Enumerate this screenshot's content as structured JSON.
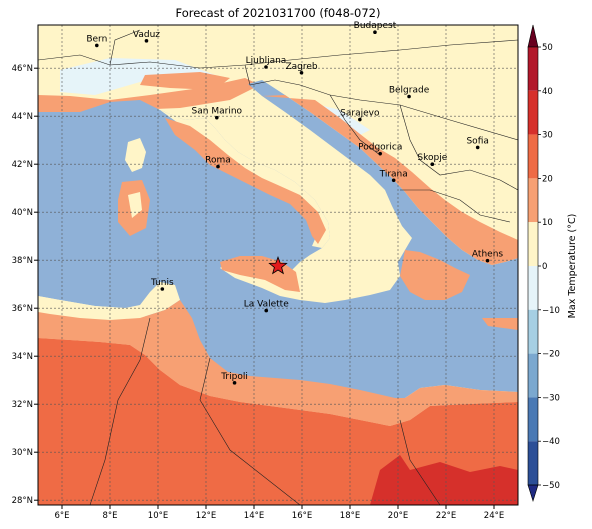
{
  "title": "Forecast of 2021031700 (f048-072)",
  "map": {
    "lon_range": [
      5,
      25
    ],
    "lat_range": [
      27.8,
      47.8
    ],
    "lon_ticks": [
      {
        "value": 6,
        "label": "6°E"
      },
      {
        "value": 8,
        "label": "8°E"
      },
      {
        "value": 10,
        "label": "10°E"
      },
      {
        "value": 12,
        "label": "12°E"
      },
      {
        "value": 14,
        "label": "14°E"
      },
      {
        "value": 16,
        "label": "16°E"
      },
      {
        "value": 18,
        "label": "18°E"
      },
      {
        "value": 20,
        "label": "20°E"
      },
      {
        "value": 22,
        "label": "22°E"
      },
      {
        "value": 24,
        "label": "24°E"
      }
    ],
    "lat_ticks": [
      {
        "value": 28,
        "label": "28°N"
      },
      {
        "value": 30,
        "label": "30°N"
      },
      {
        "value": 32,
        "label": "32°N"
      },
      {
        "value": 34,
        "label": "34°N"
      },
      {
        "value": 36,
        "label": "36°N"
      },
      {
        "value": 38,
        "label": "38°N"
      },
      {
        "value": 40,
        "label": "40°N"
      },
      {
        "value": 42,
        "label": "42°N"
      },
      {
        "value": 44,
        "label": "44°N"
      },
      {
        "value": 46,
        "label": "46°N"
      }
    ],
    "cities": [
      {
        "name": "Bern",
        "lon": 7.45,
        "lat": 46.95
      },
      {
        "name": "Vaduz",
        "lon": 9.52,
        "lat": 47.14
      },
      {
        "name": "Budapest",
        "lon": 19.04,
        "lat": 47.5
      },
      {
        "name": "Ljubljana",
        "lon": 14.5,
        "lat": 46.05
      },
      {
        "name": "Zagreb",
        "lon": 15.98,
        "lat": 45.81
      },
      {
        "name": "Belgrade",
        "lon": 20.46,
        "lat": 44.82
      },
      {
        "name": "San Marino",
        "lon": 12.45,
        "lat": 43.94
      },
      {
        "name": "Sarajevo",
        "lon": 18.41,
        "lat": 43.86
      },
      {
        "name": "Sofia",
        "lon": 23.32,
        "lat": 42.7
      },
      {
        "name": "Podgorica",
        "lon": 19.26,
        "lat": 42.44
      },
      {
        "name": "Skopje",
        "lon": 21.43,
        "lat": 42.0
      },
      {
        "name": "Roma",
        "lon": 12.5,
        "lat": 41.9
      },
      {
        "name": "Tirana",
        "lon": 19.82,
        "lat": 41.33
      },
      {
        "name": "Athens",
        "lon": 23.73,
        "lat": 37.98
      },
      {
        "name": "Tunis",
        "lon": 10.18,
        "lat": 36.8
      },
      {
        "name": "La Valette",
        "lon": 14.51,
        "lat": 35.9
      },
      {
        "name": "Tripoli",
        "lon": 13.19,
        "lat": 32.89
      }
    ],
    "marker": {
      "lon": 15.0,
      "lat": 37.75,
      "color": "#e31a1c"
    }
  },
  "colorbar": {
    "label": "Max Temperature (°C)",
    "ticks": [
      "50",
      "40",
      "30",
      "20",
      "10",
      "0",
      "−10",
      "−20",
      "−30",
      "−40",
      "−50"
    ],
    "colors": [
      "#67001f",
      "#b2182b",
      "#d6302b",
      "#ef6b45",
      "#f7a073",
      "#fff5c8",
      "#e6f4f9",
      "#a6cfe3",
      "#7ba8cf",
      "#4a79b4",
      "#2c4f97",
      "#1f2a82"
    ]
  },
  "colors": {
    "sea": "#8fb1d7",
    "land_warm": "#fff5c8",
    "land_cool": "#e6f4f9",
    "band_20": "#f7a073",
    "band_30": "#ef6b45",
    "band_40": "#d6302b"
  }
}
